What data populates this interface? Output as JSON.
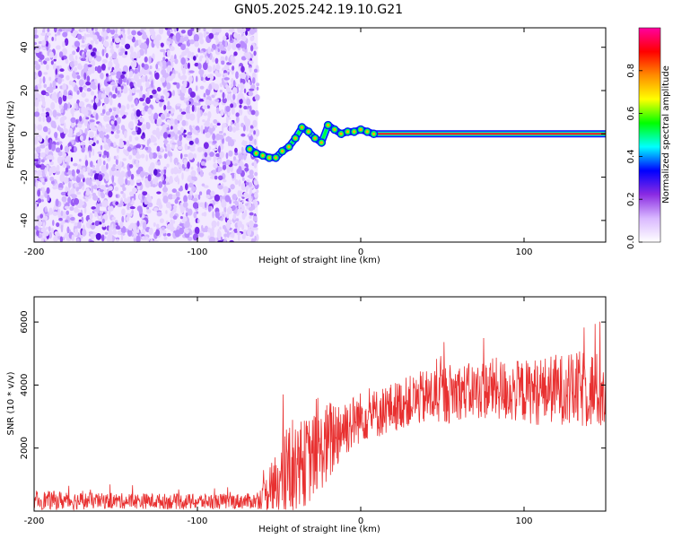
{
  "title": "GN05.2025.242.19.10.G21",
  "spectrogram": {
    "xlabel": "Height of straight line (km)",
    "ylabel": "Frequency (Hz)",
    "xlim": [
      -200,
      150
    ],
    "ylim": [
      -50,
      49
    ],
    "xticks": [
      "-200",
      "-100",
      "0",
      "100"
    ],
    "yticks": [
      "40",
      "20",
      "0",
      "-20",
      "-40"
    ],
    "noise_region_x": [
      -200,
      -63
    ],
    "tracked_line": {
      "x": [
        -68,
        -64,
        -60,
        -56,
        -52,
        -48,
        -44,
        -40,
        -36,
        -32,
        -28,
        -24,
        -20,
        -16,
        -12,
        -8,
        -4,
        0,
        4,
        8,
        20,
        40,
        60,
        80,
        100,
        120,
        140,
        150
      ],
      "y": [
        -7,
        -9,
        -10,
        -11,
        -11,
        -8,
        -6,
        -2,
        3,
        1,
        -2,
        -4,
        4,
        2,
        0,
        1,
        1,
        2,
        1,
        0,
        0,
        0,
        0,
        0,
        0,
        0,
        0,
        0
      ]
    },
    "colorbar": {
      "label": "Normalized spectral amplitude",
      "ticks": [
        "0.0",
        "0.2",
        "0.4",
        "0.6",
        "0.8"
      ],
      "colors": [
        "#ffffff",
        "#d9b8ff",
        "#8a2be2",
        "#0000ff",
        "#00ffff",
        "#00ff00",
        "#ffff00",
        "#ff8c00",
        "#ff0000",
        "#ff00a0"
      ]
    }
  },
  "snr": {
    "xlabel": "Height of straight line (km)",
    "ylabel": "SNR (10 * v/v)",
    "xlim": [
      -200,
      150
    ],
    "ylim": [
      0,
      6800
    ],
    "xticks": [
      "-200",
      "-100",
      "0",
      "100"
    ],
    "yticks": [
      "6000",
      "4000",
      "2000"
    ],
    "line_color": "#e83030",
    "envelope": {
      "x": [
        -200,
        -180,
        -160,
        -140,
        -120,
        -100,
        -80,
        -65,
        -60,
        -55,
        -50,
        -45,
        -40,
        -35,
        -30,
        -25,
        -20,
        -15,
        -10,
        -5,
        0,
        10,
        20,
        30,
        40,
        50,
        60,
        70,
        80,
        90,
        100,
        110,
        120,
        130,
        140,
        150
      ],
      "mean": [
        350,
        330,
        320,
        320,
        310,
        300,
        310,
        320,
        450,
        700,
        900,
        1300,
        1500,
        1500,
        1700,
        1900,
        2100,
        2500,
        2700,
        2800,
        3000,
        3100,
        3300,
        3500,
        3600,
        3700,
        3800,
        3800,
        3900,
        3800,
        3800,
        3800,
        3900,
        3800,
        3900,
        3700
      ],
      "spread": [
        300,
        300,
        250,
        250,
        250,
        250,
        250,
        250,
        400,
        800,
        1200,
        1500,
        1600,
        1400,
        1400,
        1200,
        1400,
        1200,
        1000,
        900,
        800,
        800,
        800,
        800,
        900,
        1000,
        900,
        900,
        1000,
        1000,
        1000,
        1100,
        1100,
        1200,
        1300,
        1200
      ]
    }
  }
}
